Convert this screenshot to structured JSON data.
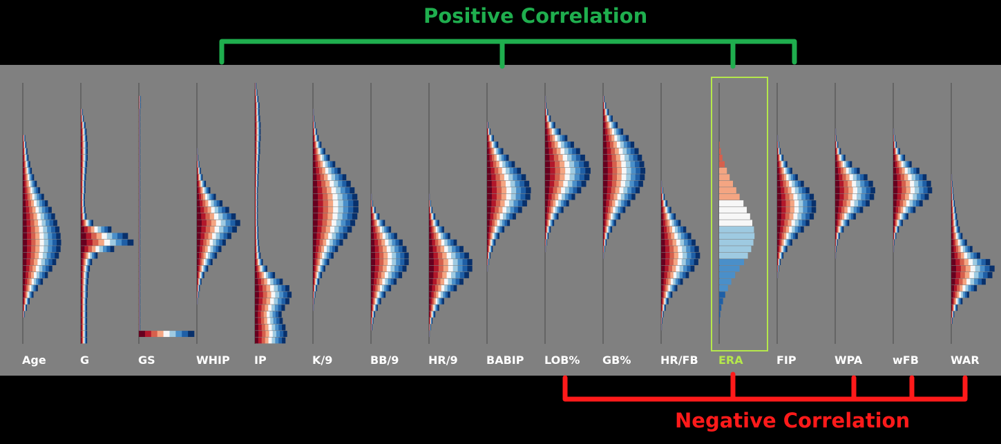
{
  "positive_label": "Positive Correlation",
  "negative_label": "Negative Correlation",
  "colors": {
    "background": "#000000",
    "panel": "#808080",
    "positive": "#1fae4e",
    "negative": "#ff1a1a",
    "highlight": "#b5e84b",
    "label": "#ffffff"
  },
  "chart_data": {
    "type": "bar",
    "subtype": "horizontal histograms per pitching statistic, bars colored by ERA (red = high, blue = low)",
    "highlighted": "ERA",
    "positive_group": [
      "WHIP",
      "BABIP",
      "ERA",
      "FIP"
    ],
    "negative_group": [
      "LOB%",
      "ERA",
      "WPA",
      "wFB",
      "WAR"
    ],
    "series": [
      {
        "name": "Age",
        "values": [
          0.0,
          0.0,
          0.0,
          0.0,
          0.0,
          0.0,
          0.0,
          0.0,
          0.04,
          0.06,
          0.08,
          0.1,
          0.13,
          0.16,
          0.2,
          0.25,
          0.31,
          0.38,
          0.45,
          0.52,
          0.58,
          0.62,
          0.66,
          0.68,
          0.69,
          0.68,
          0.65,
          0.6,
          0.53,
          0.45,
          0.36,
          0.27,
          0.19,
          0.12,
          0.07,
          0.03,
          0.0,
          0.0,
          0.0,
          0.0
        ]
      },
      {
        "name": "G",
        "values": [
          0.0,
          0.0,
          0.0,
          0.0,
          0.03,
          0.05,
          0.08,
          0.1,
          0.11,
          0.12,
          0.12,
          0.12,
          0.11,
          0.1,
          0.09,
          0.08,
          0.08,
          0.07,
          0.07,
          0.08,
          0.1,
          0.22,
          0.55,
          0.85,
          0.95,
          0.6,
          0.3,
          0.2,
          0.16,
          0.14,
          0.13,
          0.12,
          0.12,
          0.11,
          0.11,
          0.11,
          0.11,
          0.11,
          0.11,
          0.11
        ]
      },
      {
        "name": "GS",
        "values": [
          0.0,
          0.0,
          0.03,
          0.03,
          0.02,
          0.02,
          0.02,
          0.02,
          0.02,
          0.02,
          0.02,
          0.02,
          0.02,
          0.02,
          0.02,
          0.02,
          0.02,
          0.02,
          0.02,
          0.02,
          0.02,
          0.02,
          0.02,
          0.02,
          0.02,
          0.02,
          0.02,
          0.02,
          0.02,
          0.02,
          0.02,
          0.02,
          0.02,
          0.02,
          0.02,
          0.02,
          0.02,
          0.02,
          1.0,
          0.0
        ]
      },
      {
        "name": "WHIP",
        "values": [
          0.0,
          0.0,
          0.0,
          0.0,
          0.0,
          0.0,
          0.0,
          0.0,
          0.0,
          0.0,
          0.01,
          0.02,
          0.04,
          0.07,
          0.1,
          0.16,
          0.24,
          0.34,
          0.46,
          0.58,
          0.7,
          0.78,
          0.72,
          0.62,
          0.52,
          0.44,
          0.36,
          0.28,
          0.2,
          0.13,
          0.08,
          0.05,
          0.03,
          0.01,
          0.0,
          0.0,
          0.0,
          0.0,
          0.0,
          0.0
        ]
      },
      {
        "name": "IP",
        "values": [
          0.02,
          0.04,
          0.06,
          0.08,
          0.08,
          0.09,
          0.1,
          0.1,
          0.1,
          0.09,
          0.09,
          0.08,
          0.07,
          0.07,
          0.06,
          0.06,
          0.05,
          0.05,
          0.05,
          0.05,
          0.05,
          0.05,
          0.06,
          0.06,
          0.07,
          0.08,
          0.1,
          0.14,
          0.22,
          0.36,
          0.5,
          0.62,
          0.66,
          0.62,
          0.54,
          0.48,
          0.5,
          0.55,
          0.58,
          0.55
        ]
      },
      {
        "name": "K/9",
        "values": [
          0.0,
          0.0,
          0.0,
          0.0,
          0.01,
          0.02,
          0.04,
          0.07,
          0.1,
          0.15,
          0.22,
          0.3,
          0.4,
          0.5,
          0.6,
          0.68,
          0.75,
          0.8,
          0.82,
          0.82,
          0.8,
          0.76,
          0.7,
          0.62,
          0.54,
          0.45,
          0.37,
          0.29,
          0.22,
          0.16,
          0.11,
          0.07,
          0.04,
          0.02,
          0.01,
          0.0,
          0.0,
          0.0,
          0.0,
          0.0
        ]
      },
      {
        "name": "BB/9",
        "values": [
          0.0,
          0.0,
          0.0,
          0.0,
          0.0,
          0.0,
          0.0,
          0.0,
          0.0,
          0.0,
          0.0,
          0.0,
          0.0,
          0.0,
          0.0,
          0.0,
          0.0,
          0.01,
          0.03,
          0.08,
          0.15,
          0.25,
          0.36,
          0.47,
          0.57,
          0.64,
          0.68,
          0.68,
          0.64,
          0.56,
          0.46,
          0.36,
          0.26,
          0.18,
          0.12,
          0.07,
          0.04,
          0.02,
          0.0,
          0.0
        ]
      },
      {
        "name": "HR/9",
        "values": [
          0.0,
          0.0,
          0.0,
          0.0,
          0.0,
          0.0,
          0.0,
          0.0,
          0.0,
          0.0,
          0.0,
          0.0,
          0.0,
          0.0,
          0.0,
          0.0,
          0.0,
          0.01,
          0.03,
          0.06,
          0.11,
          0.18,
          0.27,
          0.38,
          0.5,
          0.62,
          0.72,
          0.78,
          0.78,
          0.72,
          0.62,
          0.5,
          0.38,
          0.27,
          0.18,
          0.11,
          0.06,
          0.03,
          0.01,
          0.0
        ]
      },
      {
        "name": "BABIP",
        "values": [
          0.0,
          0.0,
          0.0,
          0.0,
          0.0,
          0.0,
          0.02,
          0.06,
          0.12,
          0.2,
          0.29,
          0.39,
          0.5,
          0.61,
          0.7,
          0.76,
          0.79,
          0.78,
          0.72,
          0.63,
          0.52,
          0.41,
          0.31,
          0.22,
          0.15,
          0.1,
          0.06,
          0.03,
          0.01,
          0.0,
          0.0,
          0.0,
          0.0,
          0.0,
          0.0,
          0.0,
          0.0,
          0.0,
          0.0,
          0.0
        ]
      },
      {
        "name": "LOB%",
        "values": [
          0.0,
          0.0,
          0.01,
          0.02,
          0.05,
          0.1,
          0.18,
          0.28,
          0.4,
          0.52,
          0.63,
          0.72,
          0.79,
          0.82,
          0.8,
          0.74,
          0.65,
          0.54,
          0.43,
          0.33,
          0.24,
          0.16,
          0.1,
          0.06,
          0.03,
          0.01,
          0.0,
          0.0,
          0.0,
          0.0,
          0.0,
          0.0,
          0.0,
          0.0,
          0.0,
          0.0,
          0.0,
          0.0,
          0.0,
          0.0
        ]
      },
      {
        "name": "GB%",
        "values": [
          0.0,
          0.0,
          0.02,
          0.05,
          0.1,
          0.17,
          0.26,
          0.36,
          0.46,
          0.56,
          0.64,
          0.7,
          0.74,
          0.76,
          0.75,
          0.72,
          0.66,
          0.58,
          0.49,
          0.4,
          0.31,
          0.23,
          0.16,
          0.1,
          0.06,
          0.03,
          0.01,
          0.0,
          0.0,
          0.0,
          0.0,
          0.0,
          0.0,
          0.0,
          0.0,
          0.0,
          0.0,
          0.0,
          0.0,
          0.0
        ]
      },
      {
        "name": "HR/FB",
        "values": [
          0.0,
          0.0,
          0.0,
          0.0,
          0.0,
          0.0,
          0.0,
          0.0,
          0.0,
          0.0,
          0.0,
          0.0,
          0.0,
          0.0,
          0.0,
          0.01,
          0.03,
          0.06,
          0.11,
          0.18,
          0.26,
          0.35,
          0.45,
          0.54,
          0.62,
          0.68,
          0.7,
          0.67,
          0.6,
          0.5,
          0.39,
          0.29,
          0.2,
          0.13,
          0.08,
          0.04,
          0.02,
          0.01,
          0.0,
          0.0
        ]
      },
      {
        "name": "ERA",
        "values": [
          0.0,
          0.0,
          0.0,
          0.0,
          0.0,
          0.0,
          0.0,
          0.0,
          0.0,
          0.01,
          0.03,
          0.06,
          0.1,
          0.14,
          0.19,
          0.25,
          0.31,
          0.37,
          0.44,
          0.5,
          0.56,
          0.6,
          0.63,
          0.64,
          0.62,
          0.58,
          0.52,
          0.45,
          0.37,
          0.29,
          0.22,
          0.16,
          0.11,
          0.07,
          0.04,
          0.02,
          0.01,
          0.0,
          0.0,
          0.0
        ]
      },
      {
        "name": "FIP",
        "values": [
          0.0,
          0.0,
          0.0,
          0.0,
          0.0,
          0.0,
          0.0,
          0.0,
          0.01,
          0.03,
          0.06,
          0.11,
          0.18,
          0.27,
          0.37,
          0.48,
          0.58,
          0.66,
          0.7,
          0.7,
          0.66,
          0.58,
          0.48,
          0.37,
          0.27,
          0.18,
          0.11,
          0.06,
          0.03,
          0.01,
          0.0,
          0.0,
          0.0,
          0.0,
          0.0,
          0.0,
          0.0,
          0.0,
          0.0,
          0.0
        ]
      },
      {
        "name": "WPA",
        "values": [
          0.0,
          0.0,
          0.0,
          0.0,
          0.0,
          0.0,
          0.0,
          0.01,
          0.02,
          0.05,
          0.1,
          0.18,
          0.3,
          0.44,
          0.58,
          0.68,
          0.72,
          0.7,
          0.62,
          0.5,
          0.37,
          0.25,
          0.15,
          0.08,
          0.04,
          0.02,
          0.01,
          0.0,
          0.0,
          0.0,
          0.0,
          0.0,
          0.0,
          0.0,
          0.0,
          0.0,
          0.0,
          0.0,
          0.0,
          0.0
        ]
      },
      {
        "name": "wFB",
        "values": [
          0.0,
          0.0,
          0.0,
          0.0,
          0.0,
          0.0,
          0.0,
          0.01,
          0.03,
          0.06,
          0.12,
          0.21,
          0.33,
          0.47,
          0.6,
          0.68,
          0.7,
          0.64,
          0.53,
          0.4,
          0.27,
          0.17,
          0.1,
          0.05,
          0.02,
          0.01,
          0.0,
          0.0,
          0.0,
          0.0,
          0.0,
          0.0,
          0.0,
          0.0,
          0.0,
          0.0,
          0.0,
          0.0,
          0.0,
          0.0
        ]
      },
      {
        "name": "WAR",
        "values": [
          0.0,
          0.0,
          0.0,
          0.0,
          0.0,
          0.0,
          0.0,
          0.0,
          0.0,
          0.0,
          0.0,
          0.0,
          0.0,
          0.0,
          0.01,
          0.02,
          0.03,
          0.04,
          0.06,
          0.08,
          0.1,
          0.12,
          0.15,
          0.2,
          0.28,
          0.38,
          0.52,
          0.7,
          0.78,
          0.74,
          0.62,
          0.46,
          0.32,
          0.2,
          0.11,
          0.05,
          0.02,
          0.0,
          0.0,
          0.0
        ]
      }
    ]
  }
}
